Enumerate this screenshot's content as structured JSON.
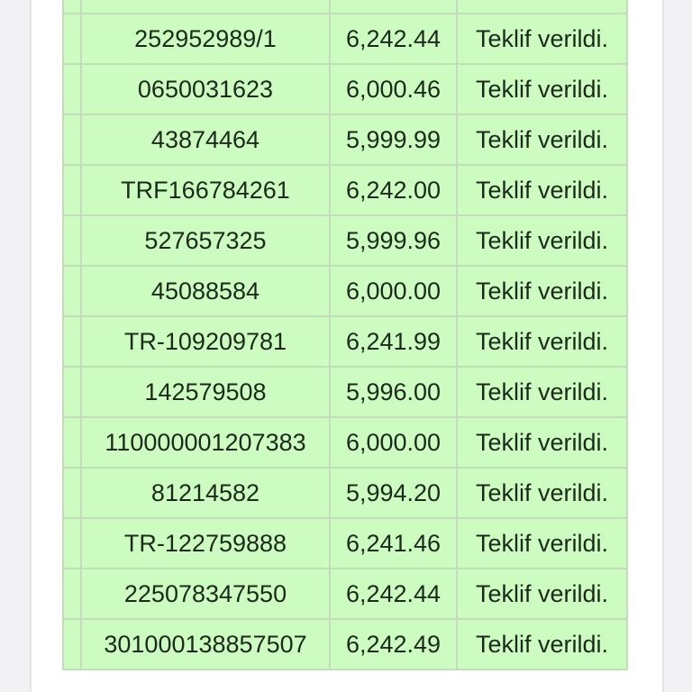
{
  "rows": [
    {
      "id": "",
      "amount": "",
      "status": ""
    },
    {
      "id": "252952989/1",
      "amount": "6,242.44",
      "status": "Teklif verildi."
    },
    {
      "id": "0650031623",
      "amount": "6,000.46",
      "status": "Teklif verildi."
    },
    {
      "id": "43874464",
      "amount": "5,999.99",
      "status": "Teklif verildi."
    },
    {
      "id": "TRF166784261",
      "amount": "6,242.00",
      "status": "Teklif verildi."
    },
    {
      "id": "527657325",
      "amount": "5,999.96",
      "status": "Teklif verildi."
    },
    {
      "id": "45088584",
      "amount": "6,000.00",
      "status": "Teklif verildi."
    },
    {
      "id": "TR-109209781",
      "amount": "6,241.99",
      "status": "Teklif verildi."
    },
    {
      "id": "142579508",
      "amount": "5,996.00",
      "status": "Teklif verildi."
    },
    {
      "id": "110000001207383",
      "amount": "6,000.00",
      "status": "Teklif verildi."
    },
    {
      "id": "81214582",
      "amount": "5,994.20",
      "status": "Teklif verildi."
    },
    {
      "id": "TR-122759888",
      "amount": "6,241.46",
      "status": "Teklif verildi."
    },
    {
      "id": "225078347550",
      "amount": "6,242.44",
      "status": "Teklif verildi."
    },
    {
      "id": "301000138857507",
      "amount": "6,242.49",
      "status": "Teklif verildi."
    }
  ],
  "colors": {
    "row_bg": "#ccfcc0",
    "text": "#1c2a1c",
    "page_bg": "#f2f2f4"
  }
}
